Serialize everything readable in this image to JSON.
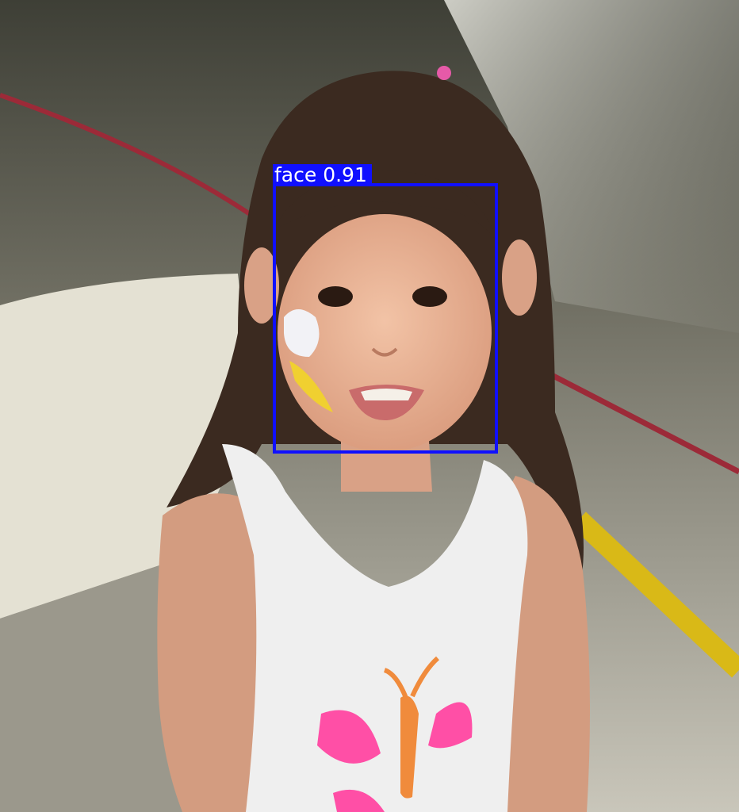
{
  "detections": [
    {
      "label": "face",
      "score": "0.91",
      "color": "#1010ff"
    }
  ],
  "palette": {
    "floor": "#d8d6cc",
    "chair": "#e6e3d6",
    "wall": "#45463c",
    "skin": "#e2aa8c",
    "hair": "#3b2a20",
    "shirt": "#f1f1f1",
    "red_line": "#9c2a38",
    "yellow_line": "#d9b917",
    "butterfly_pink": "#ff4fa6",
    "butterfly_body": "#f08b3c"
  }
}
